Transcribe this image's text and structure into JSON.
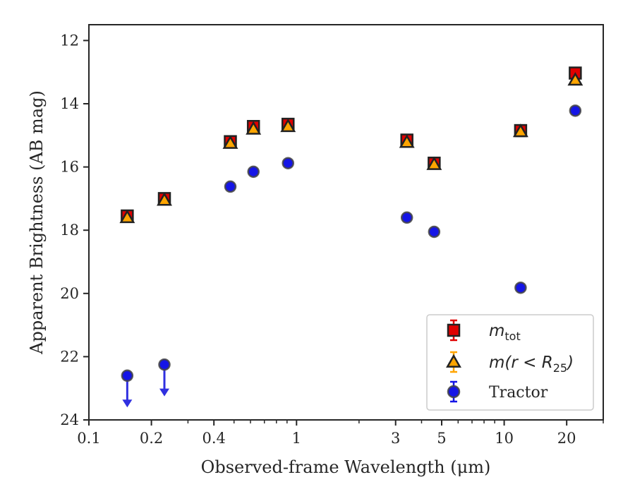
{
  "chart_data": {
    "type": "scatter",
    "title": "",
    "xlabel": "Observed-frame Wavelength (μm)",
    "ylabel": "Apparent Brightness (AB mag)",
    "xscale": "log",
    "xlim": [
      0.1,
      30
    ],
    "ylim": [
      24,
      11.5
    ],
    "y_inverted": true,
    "xticks": [
      {
        "value": 0.1,
        "label": "0.1"
      },
      {
        "value": 0.2,
        "label": "0.2"
      },
      {
        "value": 0.4,
        "label": "0.4"
      },
      {
        "value": 1,
        "label": "1"
      },
      {
        "value": 3,
        "label": "3"
      },
      {
        "value": 5,
        "label": "5"
      },
      {
        "value": 10,
        "label": "10"
      },
      {
        "value": 20,
        "label": "20"
      }
    ],
    "yticks": [
      {
        "value": 12,
        "label": "12"
      },
      {
        "value": 14,
        "label": "14"
      },
      {
        "value": 16,
        "label": "16"
      },
      {
        "value": 18,
        "label": "18"
      },
      {
        "value": 20,
        "label": "20"
      },
      {
        "value": 22,
        "label": "22"
      },
      {
        "value": 24,
        "label": "24"
      }
    ],
    "grid": false,
    "legend_position": "lower-right",
    "series": [
      {
        "name": "m_tot",
        "legend_symbol": "m",
        "legend_subscript": "tot",
        "marker": "square",
        "color": "#e00000",
        "edge_color": "#222222",
        "points": [
          {
            "x": 0.153,
            "y": 17.55,
            "err": 0.1
          },
          {
            "x": 0.231,
            "y": 17.0,
            "err": 0.1
          },
          {
            "x": 0.48,
            "y": 15.2,
            "err": 0.1
          },
          {
            "x": 0.62,
            "y": 14.72,
            "err": 0.1
          },
          {
            "x": 0.91,
            "y": 14.65,
            "err": 0.1
          },
          {
            "x": 3.4,
            "y": 15.15,
            "err": 0.1
          },
          {
            "x": 4.6,
            "y": 15.88,
            "err": 0.1
          },
          {
            "x": 12.0,
            "y": 14.85,
            "err": 0.1
          },
          {
            "x": 22.0,
            "y": 13.03,
            "err": 0.1
          }
        ]
      },
      {
        "name": "m(r < R_25)",
        "legend_symbol": "m(r < R",
        "legend_subscript": "25",
        "legend_suffix": ")",
        "marker": "triangle",
        "color": "#ffa500",
        "edge_color": "#222222",
        "points": [
          {
            "x": 0.153,
            "y": 17.6,
            "err": 0.05
          },
          {
            "x": 0.231,
            "y": 17.05,
            "err": 0.05
          },
          {
            "x": 0.48,
            "y": 15.25,
            "err": 0.05
          },
          {
            "x": 0.62,
            "y": 14.8,
            "err": 0.05
          },
          {
            "x": 0.91,
            "y": 14.72,
            "err": 0.05
          },
          {
            "x": 3.4,
            "y": 15.22,
            "err": 0.05
          },
          {
            "x": 4.6,
            "y": 15.92,
            "err": 0.05
          },
          {
            "x": 12.0,
            "y": 14.88,
            "err": 0.05
          },
          {
            "x": 22.0,
            "y": 13.25,
            "err": 0.05
          }
        ]
      },
      {
        "name": "Tractor",
        "legend_symbol": "Tractor",
        "marker": "circle",
        "color": "#1515e6",
        "edge_color": "#444444",
        "points": [
          {
            "x": 0.153,
            "y": 22.6,
            "upper_limit": true
          },
          {
            "x": 0.231,
            "y": 22.25,
            "upper_limit": true
          },
          {
            "x": 0.48,
            "y": 16.62,
            "err": 0.05
          },
          {
            "x": 0.62,
            "y": 16.15,
            "err": 0.05
          },
          {
            "x": 0.91,
            "y": 15.88,
            "err": 0.05
          },
          {
            "x": 3.4,
            "y": 17.6,
            "err": 0.05
          },
          {
            "x": 4.6,
            "y": 18.05,
            "err": 0.05
          },
          {
            "x": 12.0,
            "y": 19.82,
            "err": 0.05
          },
          {
            "x": 22.0,
            "y": 14.22,
            "err": 0.05
          }
        ]
      }
    ]
  }
}
